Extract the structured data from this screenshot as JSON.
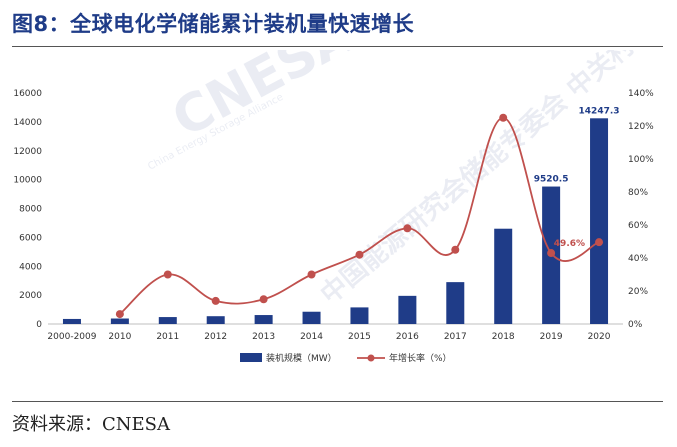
{
  "figure": {
    "title": "图8：全球电化学储能累计装机量快速增长",
    "source": "资料来源：CNESA"
  },
  "watermark": {
    "text_main": "CNESA",
    "text_sub": "China Energy Storage Alliance",
    "text_cn": "中国能源研究会储能专委会 中关村储能产业技术联盟"
  },
  "colors": {
    "bar": "#1f3c88",
    "line": "#c0504d",
    "title": "#1f3c88",
    "axis_text": "#333333"
  },
  "chart_data": {
    "type": "bar",
    "categories": [
      "2000-2009",
      "2010",
      "2011",
      "2012",
      "2013",
      "2014",
      "2015",
      "2016",
      "2017",
      "2018",
      "2019",
      "2020"
    ],
    "series": [
      {
        "name": "装机规模（MW）",
        "type": "bar",
        "axis": "left",
        "values": [
          350,
          380,
          480,
          540,
          620,
          850,
          1150,
          1950,
          2900,
          6600,
          9520.5,
          14247.3
        ]
      },
      {
        "name": "年增长率（%）",
        "type": "line",
        "axis": "right",
        "values": [
          null,
          6,
          30,
          14,
          15,
          30,
          42,
          58,
          45,
          125,
          43,
          49.6
        ]
      }
    ],
    "data_labels": [
      {
        "series": 0,
        "index": 10,
        "text": "9520.5"
      },
      {
        "series": 0,
        "index": 11,
        "text": "14247.3"
      },
      {
        "series": 1,
        "index": 11,
        "text": "49.6%"
      }
    ],
    "y_left": {
      "ylim": [
        0,
        16000
      ],
      "ticks": [
        "0",
        "2000",
        "4000",
        "6000",
        "8000",
        "10000",
        "12000",
        "14000",
        "16000"
      ]
    },
    "y_right": {
      "ylim": [
        0,
        140
      ],
      "ticks": [
        "0%",
        "20%",
        "40%",
        "60%",
        "80%",
        "100%",
        "120%",
        "140%"
      ]
    },
    "grid": false,
    "legend": "bottom"
  }
}
